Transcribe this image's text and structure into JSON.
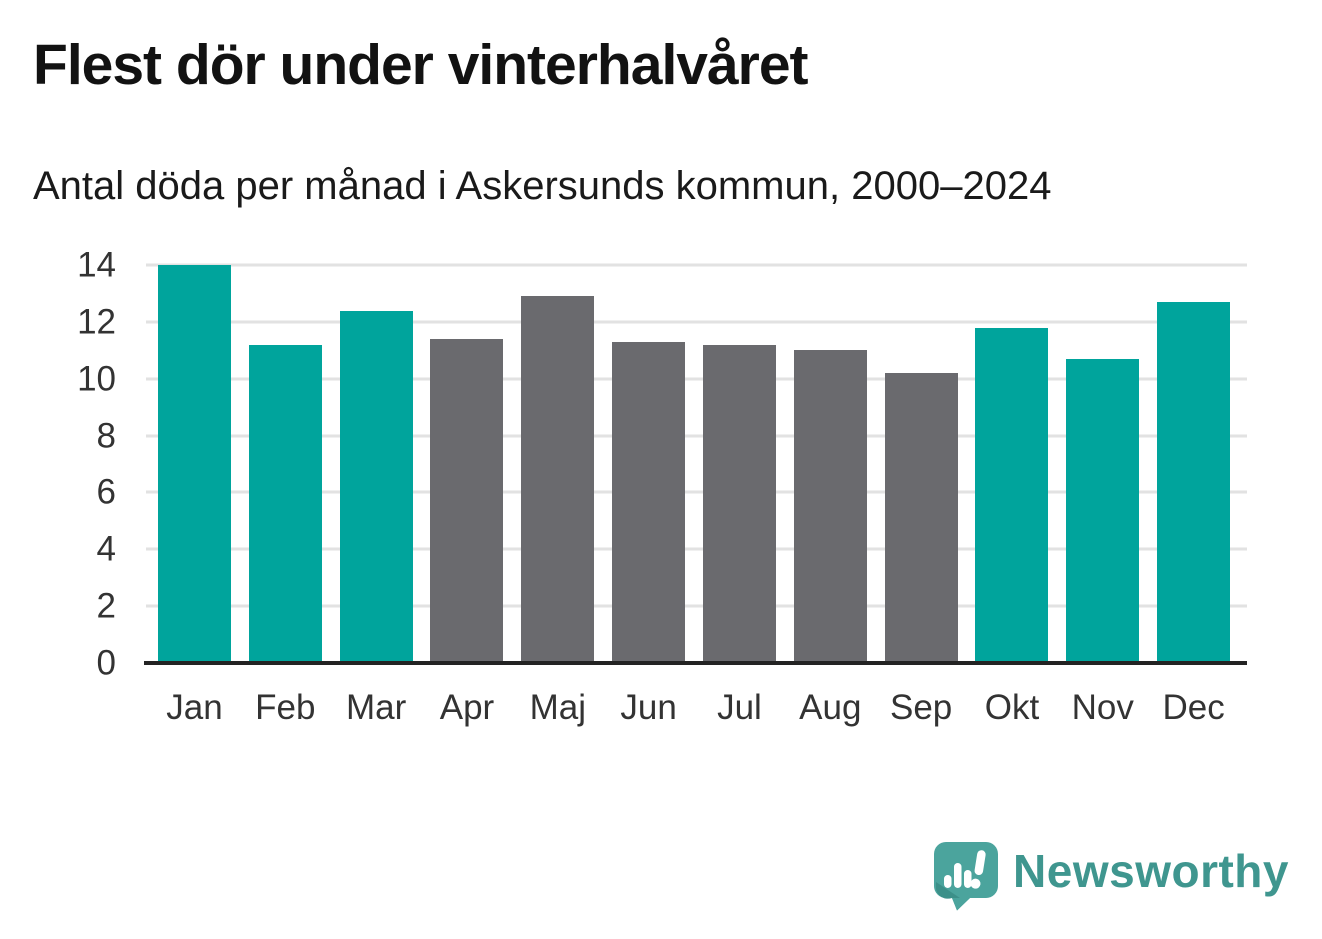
{
  "title": "Flest dör under vinterhalvåret",
  "subtitle": "Antal döda per månad i Askersunds kommun, 2000–2024",
  "chart_data": {
    "type": "bar",
    "title": "Flest dör under vinterhalvåret",
    "subtitle": "Antal döda per månad i Askersunds kommun, 2000–2024",
    "categories": [
      "Jan",
      "Feb",
      "Mar",
      "Apr",
      "Maj",
      "Jun",
      "Jul",
      "Aug",
      "Sep",
      "Okt",
      "Nov",
      "Dec"
    ],
    "values": [
      14.0,
      11.2,
      12.4,
      11.4,
      12.9,
      11.3,
      11.2,
      11.0,
      10.2,
      11.8,
      10.7,
      12.7
    ],
    "bar_roles": [
      "winter",
      "winter",
      "winter",
      "summer",
      "summer",
      "summer",
      "summer",
      "summer",
      "summer",
      "winter",
      "winter",
      "winter"
    ],
    "xlabel": "",
    "ylabel": "",
    "ylim": [
      0,
      14
    ],
    "yticks": [
      0,
      2,
      4,
      6,
      8,
      10,
      12,
      14
    ],
    "grid": "horizontal",
    "legend": "none",
    "colors": {
      "winter_bar": "#00a49c",
      "summer_bar": "#6a6a6e",
      "gridline": "#e2e2e2",
      "axis_line": "#232323",
      "tick_label": "#333333",
      "title_text": "#121212"
    }
  },
  "logo": {
    "brand": "Newsworthy",
    "icon": "newsworthy-speech-bubble-chart-icon",
    "wordmark_color": "#3f968f",
    "bubble_color": "#4ba49d",
    "bubble_shadow_color": "#3a8d86"
  }
}
